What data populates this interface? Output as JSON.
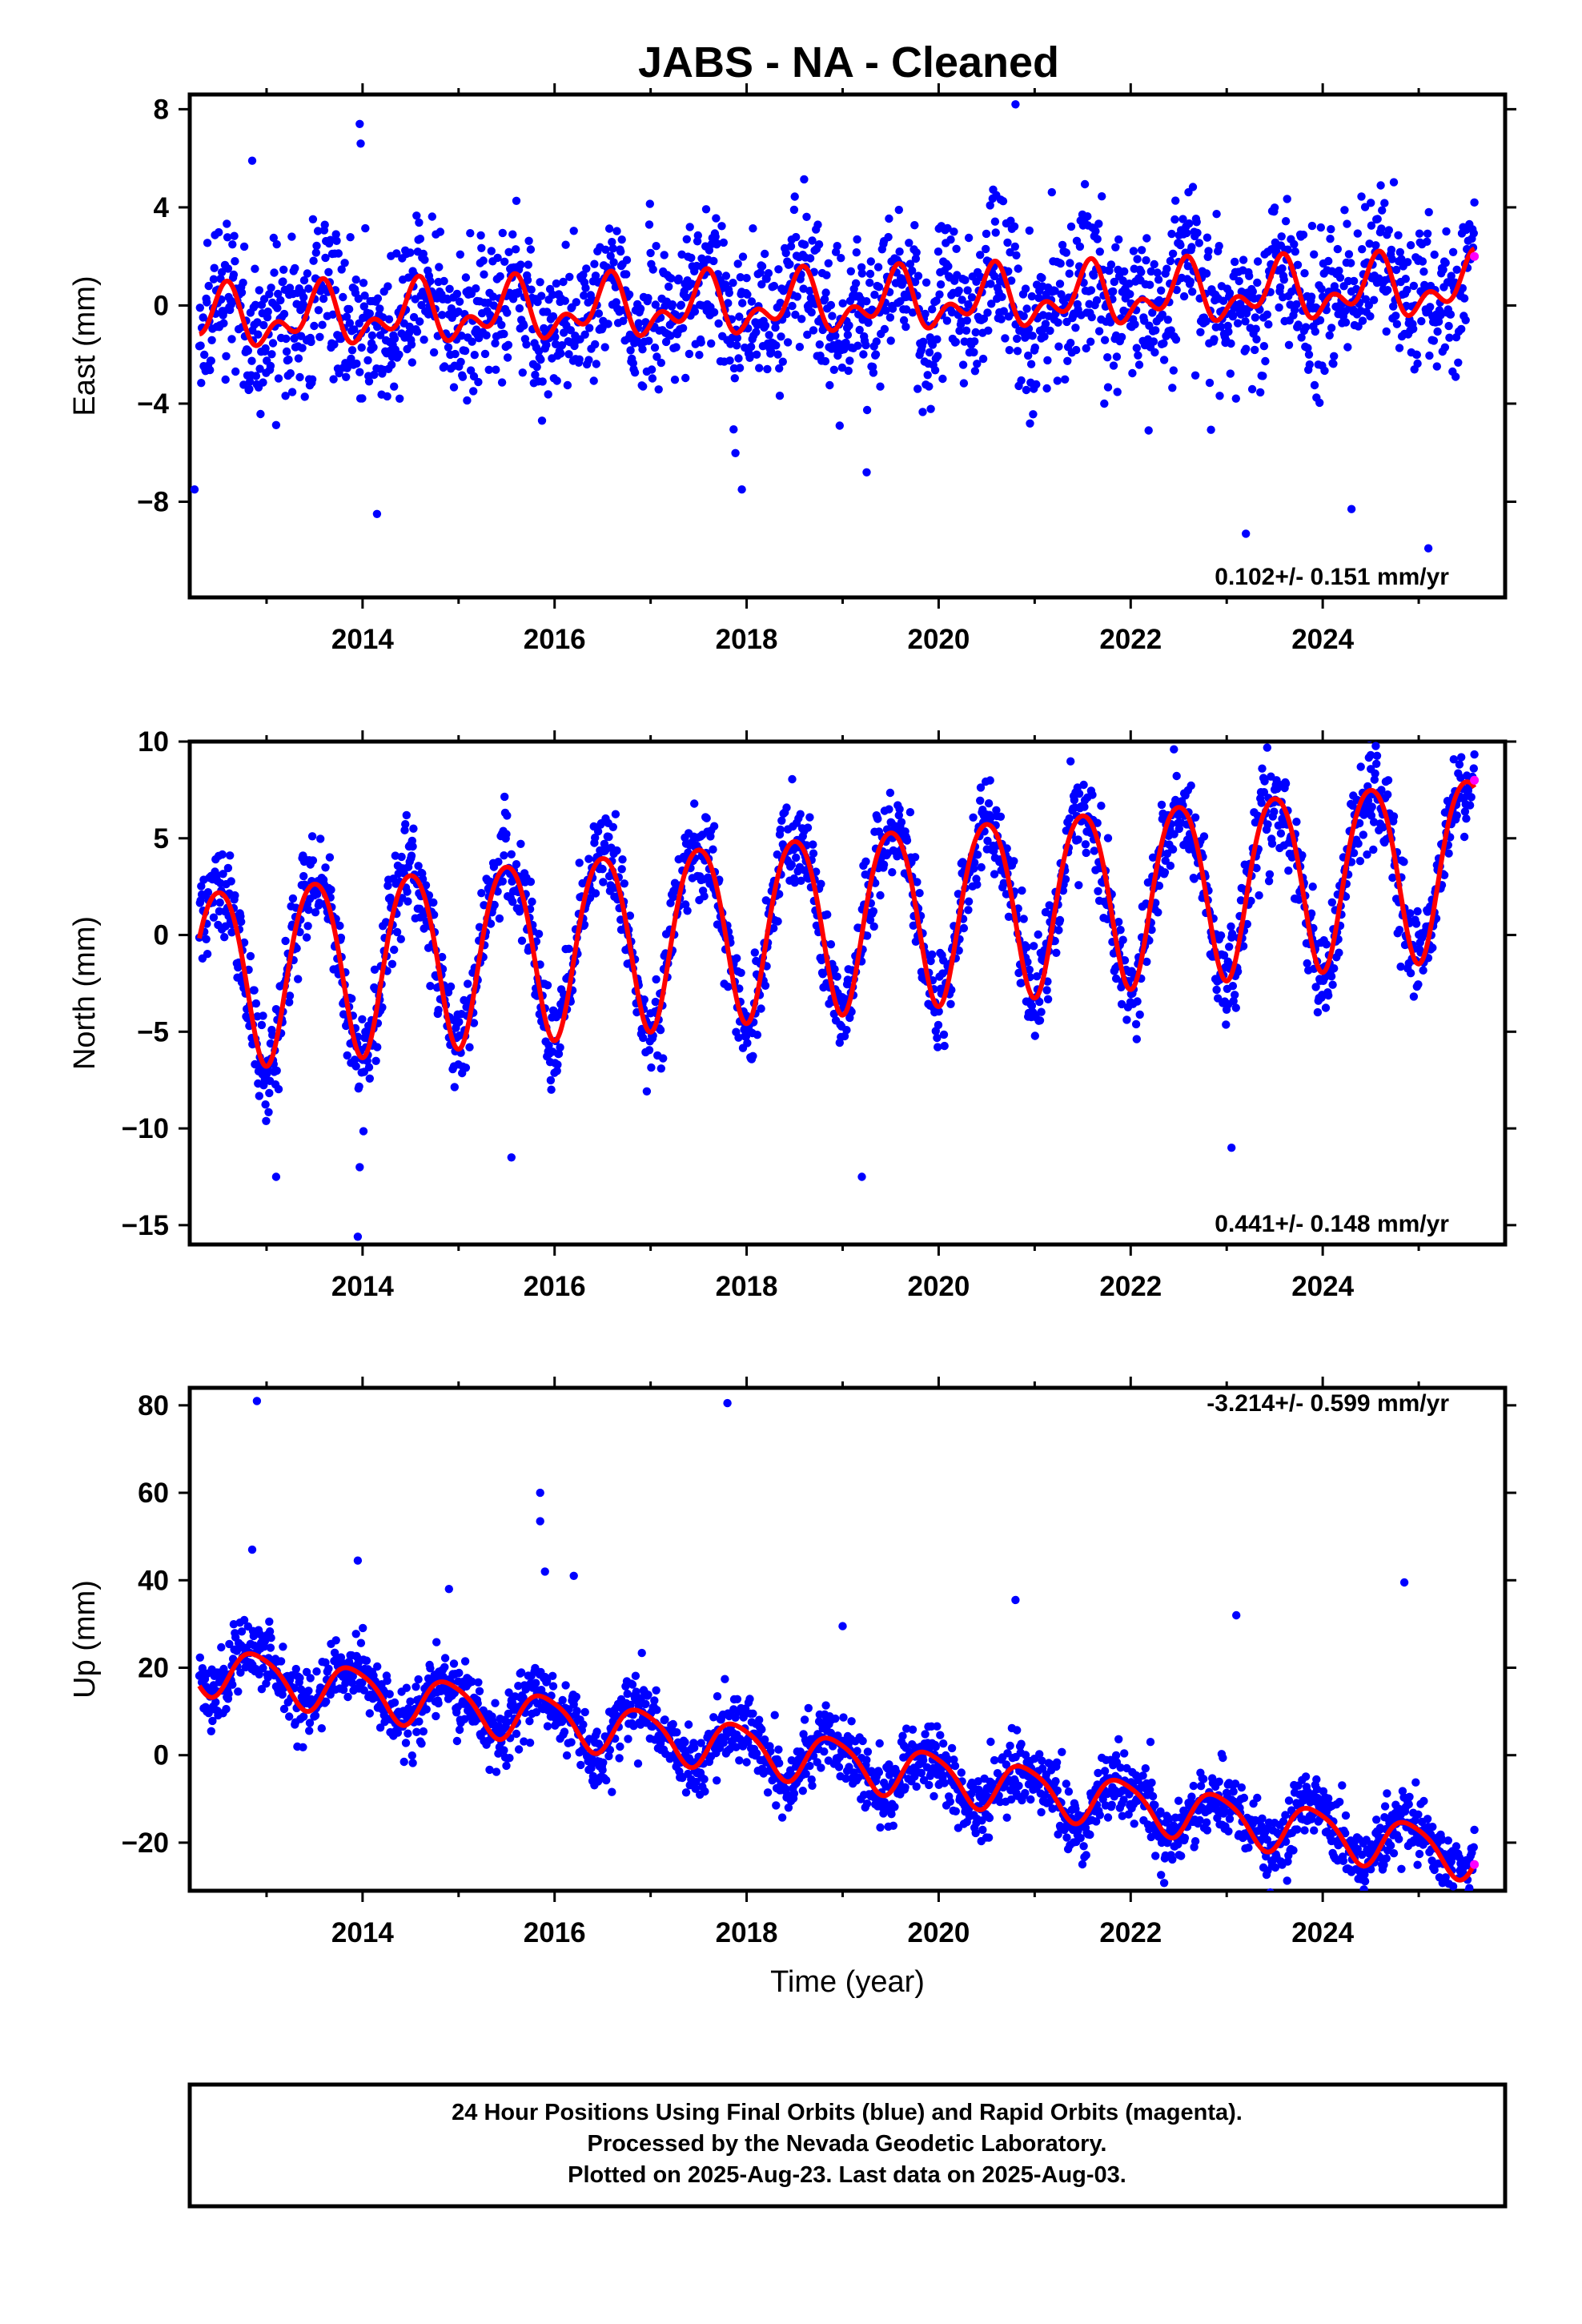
{
  "title": "JABS  - NA - Cleaned",
  "chart_data": [
    {
      "type": "scatter",
      "ylabel": "East (mm)",
      "xlim": [
        2012.2,
        2025.9
      ],
      "ylim": [
        -11.9,
        8.6
      ],
      "xticks": [
        2014,
        2016,
        2018,
        2020,
        2022,
        2024
      ],
      "yticks": [
        -8,
        -4,
        0,
        4,
        8
      ],
      "rate_text": "0.102+/- 0.151 mm/yr",
      "model": {
        "offset": -0.6,
        "slope": 0.102,
        "annual_amp": 0.9,
        "annual_phase": 0.55,
        "semi_amp": 0.7,
        "semi_phase": 0.6
      },
      "noise_sd": 1.4,
      "extra_points": [
        {
          "x": 2012.85,
          "y": 5.9
        },
        {
          "x": 2013.97,
          "y": 7.4
        },
        {
          "x": 2013.98,
          "y": 6.6
        },
        {
          "x": 2020.8,
          "y": 8.2
        },
        {
          "x": 2014.15,
          "y": -8.5
        },
        {
          "x": 2023.2,
          "y": -9.3
        },
        {
          "x": 2025.1,
          "y": -9.9
        },
        {
          "x": 2017.95,
          "y": -7.5
        },
        {
          "x": 2019.25,
          "y": -6.8
        },
        {
          "x": 2024.3,
          "y": -8.3
        },
        {
          "x": 2012.25,
          "y": -7.5
        }
      ],
      "rapid_points": [
        {
          "x": 2025.58,
          "y": 2.0
        }
      ]
    },
    {
      "type": "scatter",
      "ylabel": "North (mm)",
      "xlim": [
        2012.2,
        2025.9
      ],
      "ylim": [
        -16.0,
        10.0
      ],
      "xticks": [
        2014,
        2016,
        2018,
        2020,
        2022,
        2024
      ],
      "yticks": [
        -15,
        -10,
        -5,
        0,
        5,
        10
      ],
      "rate_text": "0.441+/- 0.148 mm/yr",
      "model": {
        "offset": -2.0,
        "slope": 0.441,
        "annual_amp": 4.6,
        "annual_phase": 0.5,
        "semi_amp": 0.5,
        "semi_phase": 0.25
      },
      "noise_sd": 1.1,
      "extra_points": [
        {
          "x": 2013.95,
          "y": -15.6
        },
        {
          "x": 2013.97,
          "y": -12.0
        },
        {
          "x": 2013.1,
          "y": -12.5
        },
        {
          "x": 2019.2,
          "y": -12.5
        },
        {
          "x": 2023.05,
          "y": -11.0
        },
        {
          "x": 2015.55,
          "y": -11.5
        },
        {
          "x": 2022.45,
          "y": 9.6
        },
        {
          "x": 2024.5,
          "y": 9.3
        }
      ],
      "rapid_points": [
        {
          "x": 2025.58,
          "y": 8.0
        }
      ]
    },
    {
      "type": "scatter",
      "ylabel": "Up (mm)",
      "xlabel": "Time (year)",
      "xlim": [
        2012.2,
        2025.9
      ],
      "ylim": [
        -31,
        84
      ],
      "xticks": [
        2014,
        2016,
        2018,
        2020,
        2022,
        2024
      ],
      "yticks": [
        -20,
        0,
        20,
        40,
        60,
        80
      ],
      "rate_text": "-3.214+/- 0.599 mm/yr",
      "model": {
        "offset": 20.0,
        "slope": -3.214,
        "annual_amp": 5.5,
        "annual_phase": 0.9,
        "semi_amp": 1.0,
        "semi_phase": 0.2
      },
      "noise_sd": 4.0,
      "extra_points": [
        {
          "x": 2012.9,
          "y": 81
        },
        {
          "x": 2017.8,
          "y": 80.5
        },
        {
          "x": 2015.85,
          "y": 60
        },
        {
          "x": 2015.85,
          "y": 53.5
        },
        {
          "x": 2015.9,
          "y": 42
        },
        {
          "x": 2016.2,
          "y": 41
        },
        {
          "x": 2013.95,
          "y": 44.5
        },
        {
          "x": 2012.85,
          "y": 47
        },
        {
          "x": 2020.8,
          "y": 35.5
        },
        {
          "x": 2024.85,
          "y": 39.5
        },
        {
          "x": 2023.1,
          "y": 32
        },
        {
          "x": 2014.9,
          "y": 38
        },
        {
          "x": 2019.0,
          "y": 29.5
        }
      ],
      "rapid_points": [
        {
          "x": 2025.58,
          "y": -25
        }
      ]
    }
  ],
  "footer": {
    "line1": "24 Hour Positions Using Final Orbits (blue) and Rapid Orbits (magenta).",
    "line2": "Processed by the Nevada Geodetic Laboratory.",
    "line3": "Plotted on 2025-Aug-23. Last data on 2025-Aug-03."
  },
  "colors": {
    "final": "#0000ff",
    "rapid": "#ff00ff",
    "model": "#ff0000",
    "axis": "#000000"
  }
}
